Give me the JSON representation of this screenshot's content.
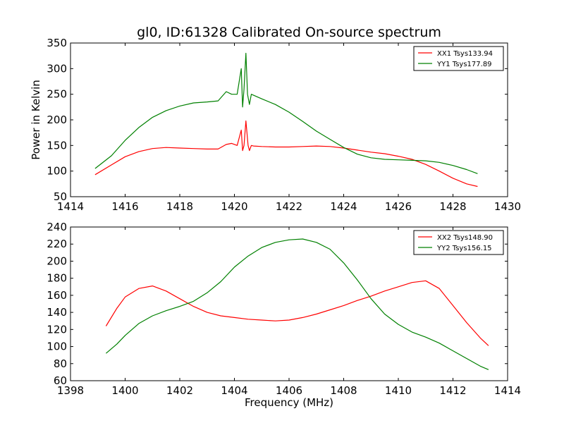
{
  "title": "gl0, ID:61328 Calibrated On-source spectrum",
  "colors": {
    "red": "#ff0000",
    "green": "#008000"
  },
  "chart_data": [
    {
      "type": "line",
      "xlabel": "",
      "ylabel": "Power in Kelvin",
      "xlim": [
        1414,
        1430
      ],
      "ylim": [
        50,
        350
      ],
      "xticks": [
        1414,
        1416,
        1418,
        1420,
        1422,
        1424,
        1426,
        1428,
        1430
      ],
      "yticks": [
        50,
        100,
        150,
        200,
        250,
        300,
        350
      ],
      "legend_position": "top-right",
      "series": [
        {
          "name": "XX1 Tsys133.94",
          "color": "#ff0000",
          "x": [
            1414.9,
            1415.5,
            1416.0,
            1416.5,
            1417.0,
            1417.5,
            1418.0,
            1418.5,
            1419.0,
            1419.4,
            1419.7,
            1419.9,
            1420.1,
            1420.25,
            1420.3,
            1420.35,
            1420.42,
            1420.5,
            1420.55,
            1420.62,
            1420.7,
            1421.0,
            1421.5,
            1422.0,
            1422.5,
            1423.0,
            1423.5,
            1424.0,
            1424.5,
            1425.0,
            1425.5,
            1426.0,
            1426.5,
            1427.0,
            1427.5,
            1428.0,
            1428.5,
            1428.9
          ],
          "values": [
            93,
            112,
            128,
            138,
            144,
            146,
            145,
            144,
            143,
            143,
            152,
            154,
            150,
            180,
            140,
            150,
            198,
            150,
            140,
            150,
            149,
            148,
            147,
            147,
            148,
            149,
            148,
            145,
            141,
            137,
            134,
            129,
            123,
            113,
            100,
            86,
            75,
            70
          ]
        },
        {
          "name": "YY1 Tsys177.89",
          "color": "#008000",
          "x": [
            1414.9,
            1415.5,
            1416.0,
            1416.5,
            1417.0,
            1417.5,
            1418.0,
            1418.5,
            1419.0,
            1419.4,
            1419.7,
            1419.9,
            1420.1,
            1420.25,
            1420.3,
            1420.35,
            1420.42,
            1420.48,
            1420.55,
            1420.62,
            1420.7,
            1421.0,
            1421.5,
            1422.0,
            1422.5,
            1423.0,
            1423.5,
            1424.0,
            1424.5,
            1425.0,
            1425.5,
            1426.0,
            1426.5,
            1427.0,
            1427.5,
            1428.0,
            1428.5,
            1428.9
          ],
          "values": [
            105,
            130,
            160,
            185,
            205,
            218,
            227,
            233,
            235,
            237,
            255,
            250,
            250,
            300,
            225,
            260,
            330,
            250,
            230,
            250,
            248,
            241,
            230,
            215,
            197,
            178,
            162,
            146,
            133,
            126,
            123,
            122,
            121,
            120,
            117,
            111,
            103,
            95
          ]
        }
      ]
    },
    {
      "type": "line",
      "xlabel": "Frequency (MHz)",
      "ylabel": "",
      "xlim": [
        1398,
        1414
      ],
      "ylim": [
        60,
        240
      ],
      "xticks": [
        1398,
        1400,
        1402,
        1404,
        1406,
        1408,
        1410,
        1412,
        1414
      ],
      "yticks": [
        60,
        80,
        100,
        120,
        140,
        160,
        180,
        200,
        220,
        240
      ],
      "legend_position": "top-right",
      "series": [
        {
          "name": "XX2 Tsys148.90",
          "color": "#ff0000",
          "x": [
            1399.3,
            1399.7,
            1400.0,
            1400.5,
            1401.0,
            1401.5,
            1402.0,
            1402.5,
            1403.0,
            1403.5,
            1404.0,
            1404.5,
            1405.0,
            1405.5,
            1406.0,
            1406.5,
            1407.0,
            1407.5,
            1408.0,
            1408.5,
            1409.0,
            1409.5,
            1410.0,
            1410.5,
            1411.0,
            1411.5,
            1412.0,
            1412.5,
            1413.0,
            1413.3
          ],
          "values": [
            124,
            145,
            158,
            168,
            171,
            165,
            156,
            147,
            140,
            136,
            134,
            132,
            131,
            130,
            131,
            134,
            138,
            143,
            148,
            154,
            159,
            165,
            170,
            175,
            177,
            168,
            148,
            128,
            110,
            101
          ]
        },
        {
          "name": "YY2 Tsys156.15",
          "color": "#008000",
          "x": [
            1399.3,
            1399.7,
            1400.0,
            1400.5,
            1401.0,
            1401.5,
            1402.0,
            1402.5,
            1403.0,
            1403.5,
            1404.0,
            1404.5,
            1405.0,
            1405.5,
            1406.0,
            1406.5,
            1407.0,
            1407.5,
            1408.0,
            1408.5,
            1409.0,
            1409.5,
            1410.0,
            1410.5,
            1411.0,
            1411.5,
            1412.0,
            1412.5,
            1413.0,
            1413.3
          ],
          "values": [
            92,
            103,
            113,
            127,
            136,
            142,
            147,
            153,
            163,
            176,
            193,
            206,
            216,
            222,
            225,
            226,
            222,
            214,
            198,
            178,
            156,
            138,
            126,
            117,
            111,
            104,
            95,
            86,
            77,
            73
          ]
        }
      ]
    }
  ]
}
